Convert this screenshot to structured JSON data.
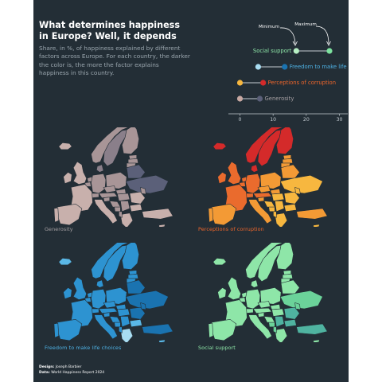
{
  "header": {
    "title_line1": "What determines happiness",
    "title_line2": "in Europe? Well, it depends",
    "subtitle": "Share, in %, of happiness explained by different factors across Europe. For each country, the darker the color is, the more the factor explains happiness in this country."
  },
  "annotations": {
    "minimum": "Minimum",
    "maximum": "Maximum"
  },
  "chart_data": [
    {
      "type": "dumbbell",
      "x_ticks": [
        0,
        10,
        20,
        30
      ],
      "xlim": [
        -3,
        33
      ],
      "grid": false,
      "series": [
        {
          "name": "Social support",
          "min": 17,
          "max": 27,
          "color_min": "#b7f0c4",
          "color_max": "#7de29f",
          "label_color": "#8ee6a8"
        },
        {
          "name": "Freedom to make life choices",
          "min": 5.5,
          "max": 13.5,
          "color_min": "#a8ddf2",
          "color_max": "#1a73b0",
          "label_color": "#4fb3e6"
        },
        {
          "name": "Perceptions of corruption",
          "min": 0,
          "max": 7,
          "color_min": "#f7b73f",
          "color_max": "#d42a2a",
          "label_color": "#f0662b"
        },
        {
          "name": "Generosity",
          "min": 0,
          "max": 6,
          "color_min": "#c8a9a3",
          "color_max": "#5b6079",
          "label_color": "#a6a0a3"
        }
      ]
    },
    {
      "type": "choropleth-grid",
      "maps": [
        {
          "label": "Generosity",
          "label_color": "#a6a0a3",
          "palette": [
            "#c8b0ac",
            "#a89597",
            "#8a7f8a",
            "#5b6079"
          ]
        },
        {
          "label": "Perceptions of corruption",
          "label_color": "#f0662b",
          "palette": [
            "#f7b73f",
            "#f39a35",
            "#ea6b2d",
            "#d42a2a"
          ]
        },
        {
          "label": "Freedom to make life choices",
          "label_color": "#4fb3e6",
          "palette": [
            "#a8ddf2",
            "#5ab7e6",
            "#2d93d1",
            "#1a73b0"
          ]
        },
        {
          "label": "Social support",
          "label_color": "#8ee6a8",
          "palette": [
            "#b7f0c4",
            "#8ee6a8",
            "#6bd39a",
            "#4fb3a0"
          ]
        }
      ]
    }
  ],
  "credits": {
    "design_label": "Design:",
    "design_value": "Joseph Barbier",
    "data_label": "Data:",
    "data_value": "World Happiness Report 2024"
  }
}
